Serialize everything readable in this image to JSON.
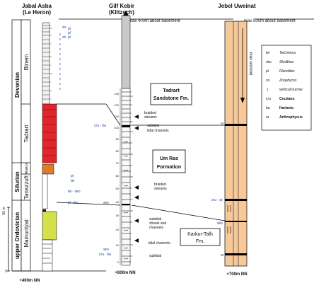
{
  "columns": {
    "left": {
      "title_line1": "Jabal Asba",
      "title_line2": "(Le Heron)",
      "base_label": "+400m NN"
    },
    "middle": {
      "title_line1": "Gilf Kebir",
      "title_line2": "(Klitzsch)",
      "top_label": "max 400m about basement",
      "base_label": "+600m NN"
    },
    "right": {
      "title": "Jebel Uweinat",
      "top_label": "max 500m about basement",
      "erosion_label": "max erosion",
      "base_label": "+700m NN"
    }
  },
  "periods": [
    "Devonian",
    "Silurian",
    "upper Ordovician"
  ],
  "formations": [
    "Binem",
    "Tadrart",
    "Akakus",
    "Tanezzuft",
    "Mamuniyat"
  ],
  "scale_bar": {
    "label": "50 m",
    "zero": "0"
  },
  "middle_units": {
    "tadrart": {
      "line1": "Tadrart",
      "line2": "Sandstone Fm."
    },
    "umras": {
      "line1": "Um Ras",
      "line2": "Formation"
    },
    "karkur": {
      "line1": "Karkur-Talh",
      "line2": "Fm."
    }
  },
  "depth_ticks": [
    "130",
    "120",
    "110",
    "100",
    "90",
    "80",
    "70",
    "60",
    "50",
    "40",
    "30",
    "20",
    "10",
    "0"
  ],
  "env_labels": {
    "braided1": [
      "braided",
      "streams"
    ],
    "subtidal_channels": [
      "subtidal",
      "tidal channels"
    ],
    "braided2": [
      "braided",
      "streams"
    ],
    "subtidal_shoals": [
      "subtidal",
      "shoals and",
      "channels"
    ],
    "tidal_channels": [
      "tidal channels"
    ],
    "subtidal_bottom": [
      "subtidal"
    ]
  },
  "trace_labels": {
    "zo_top": "zo",
    "zo_mid": "zo",
    "pl_stack": [
      "pl",
      "pl",
      "pl"
    ],
    "pl_tei": [
      "pl",
      "tei"
    ],
    "tei_sko": "tei - sko",
    "pl_sko_left": "pl- sko",
    "sko_mid": "sko",
    "cru_ha_top": "cru - ha",
    "sko_bottom": "sko",
    "cru_ha_bottom": "cru - ha",
    "ar_top": "ar",
    "cru_ar": "cru - ar",
    "sko_right": "sko",
    "ar_bottom": "ar"
  },
  "legend": [
    {
      "code": "tei",
      "name": "Teichnicus"
    },
    {
      "code": "sko",
      "name": "Skolithos"
    },
    {
      "code": "pl",
      "name": "Planolites"
    },
    {
      "code": "zo",
      "name": "Zoophycos"
    },
    {
      "code": "|",
      "name": "vertical burrow"
    },
    {
      "code": "cru",
      "name": "Cruziana"
    },
    {
      "code": "ha",
      "name": "Harlania"
    },
    {
      "code": "ar",
      "name": "Arthrophycus"
    }
  ],
  "colors": {
    "tadrart_red": "#e0262c",
    "akakus_orange": "#e07b2a",
    "mamuniyat_yellow": "#d4e04a",
    "uweinat_tan": "#f5c99a",
    "gilf_gray": "#c9c9c9",
    "trace_blue": "#1f3f9a"
  }
}
